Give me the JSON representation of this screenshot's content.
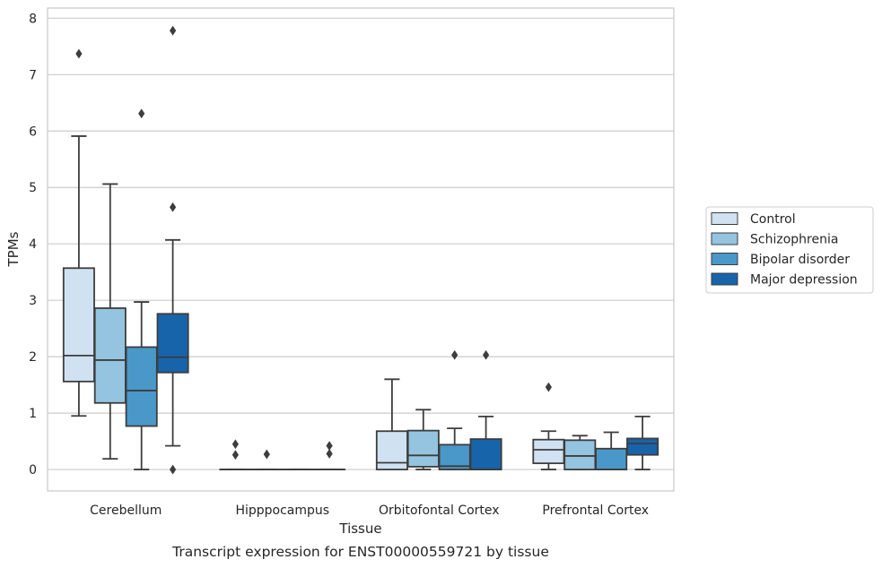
{
  "chart_data": {
    "type": "boxplot",
    "title": "",
    "caption": "Transcript expression for ENST00000559721 by tissue",
    "xlabel": "Tissue",
    "ylabel": "TPMs",
    "ylim": [
      -0.38,
      8.18
    ],
    "yticks": [
      "0",
      "1",
      "2",
      "3",
      "4",
      "5",
      "6",
      "7",
      "8"
    ],
    "grid": "horizontal",
    "legend_position": "right",
    "categories": [
      "Cerebellum",
      "Hipppocampus",
      "Orbitofontal Cortex",
      "Prefrontal Cortex"
    ],
    "series": [
      {
        "name": "Control",
        "color": "#d0e1f2",
        "boxes": [
          {
            "whislo": 0.95,
            "q1": 1.56,
            "med": 2.02,
            "q3": 3.57,
            "whishi": 5.91,
            "fliers": [
              7.37
            ]
          },
          {
            "whislo": 0,
            "q1": 0,
            "med": 0,
            "q3": 0,
            "whishi": 0,
            "fliers": [
              0.26,
              0.45
            ]
          },
          {
            "whislo": 0,
            "q1": 0,
            "med": 0.12,
            "q3": 0.68,
            "whishi": 1.6,
            "fliers": []
          },
          {
            "whislo": 0,
            "q1": 0.11,
            "med": 0.35,
            "q3": 0.53,
            "whishi": 0.68,
            "fliers": [
              1.46
            ]
          }
        ]
      },
      {
        "name": "Schizophrenia",
        "color": "#94c4df",
        "boxes": [
          {
            "whislo": 0.19,
            "q1": 1.18,
            "med": 1.94,
            "q3": 2.86,
            "whishi": 5.06,
            "fliers": []
          },
          {
            "whislo": 0,
            "q1": 0,
            "med": 0,
            "q3": 0,
            "whishi": 0,
            "fliers": [
              0.27
            ]
          },
          {
            "whislo": 0,
            "q1": 0.05,
            "med": 0.25,
            "q3": 0.69,
            "whishi": 1.06,
            "fliers": []
          },
          {
            "whislo": 0,
            "q1": 0,
            "med": 0.24,
            "q3": 0.52,
            "whishi": 0.6,
            "fliers": []
          }
        ]
      },
      {
        "name": "Bipolar disorder",
        "color": "#4a98c9",
        "boxes": [
          {
            "whislo": 0,
            "q1": 0.77,
            "med": 1.4,
            "q3": 2.17,
            "whishi": 2.97,
            "fliers": [
              6.31
            ]
          },
          {
            "whislo": 0,
            "q1": 0,
            "med": 0,
            "q3": 0,
            "whishi": 0,
            "fliers": []
          },
          {
            "whislo": 0,
            "q1": 0,
            "med": 0.06,
            "q3": 0.44,
            "whishi": 0.73,
            "fliers": [
              2.03
            ]
          },
          {
            "whislo": 0,
            "q1": 0,
            "med": 0,
            "q3": 0.37,
            "whishi": 0.66,
            "fliers": []
          }
        ]
      },
      {
        "name": "Major depression",
        "color": "#1764ab",
        "boxes": [
          {
            "whislo": 0.42,
            "q1": 1.72,
            "med": 1.99,
            "q3": 2.76,
            "whishi": 4.07,
            "fliers": [
              0,
              4.65,
              7.78
            ]
          },
          {
            "whislo": 0,
            "q1": 0,
            "med": 0,
            "q3": 0,
            "whishi": 0,
            "fliers": [
              0.28,
              0.42
            ]
          },
          {
            "whislo": 0,
            "q1": 0,
            "med": 0,
            "q3": 0.54,
            "whishi": 0.94,
            "fliers": [
              2.03
            ]
          },
          {
            "whislo": 0,
            "q1": 0.26,
            "med": 0.46,
            "q3": 0.55,
            "whishi": 0.94,
            "fliers": []
          }
        ]
      }
    ]
  }
}
